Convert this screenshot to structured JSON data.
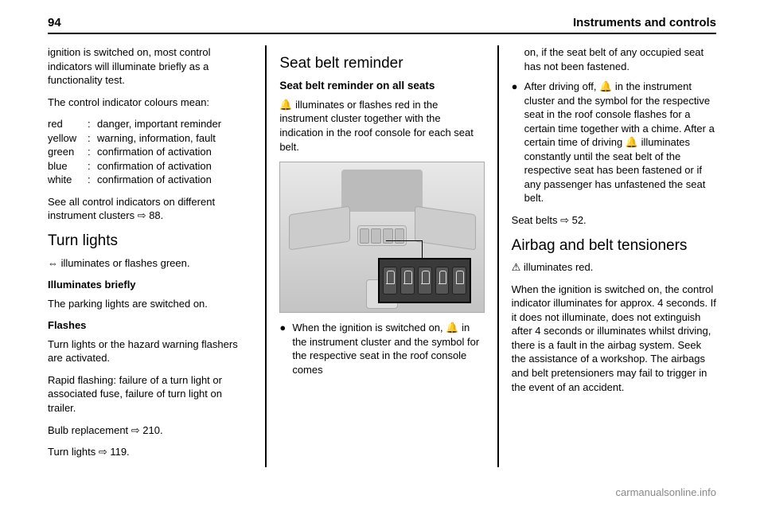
{
  "header": {
    "page_number": "94",
    "section_title": "Instruments and controls"
  },
  "col1": {
    "intro1": "ignition is switched on, most control indicators will illuminate briefly as a functionality test.",
    "intro2": "The control indicator colours mean:",
    "colors": [
      {
        "key": "red",
        "sep": ":",
        "val": "danger, important reminder"
      },
      {
        "key": "yellow",
        "sep": ":",
        "val": "warning, information, fault"
      },
      {
        "key": "green",
        "sep": ":",
        "val": "confirmation of activation"
      },
      {
        "key": "blue",
        "sep": ":",
        "val": "confirmation of activation"
      },
      {
        "key": "white",
        "sep": ":",
        "val": "confirmation of activation"
      }
    ],
    "see_all": "See all control indicators on different instrument clusters ⇨ 88.",
    "turn_lights_title": "Turn lights",
    "turn_lights_line": "⇔ illuminates or flashes green.",
    "illum_title": "Illuminates briefly",
    "illum_text": "The parking lights are switched on.",
    "flashes_title": "Flashes",
    "flashes_text1": "Turn lights or the hazard warning flashers are activated.",
    "flashes_text2": "Rapid flashing: failure of a turn light or associated fuse, failure of turn light on trailer.",
    "bulb": "Bulb replacement ⇨ 210.",
    "turn_ref": "Turn lights ⇨ 119."
  },
  "col2": {
    "title": "Seat belt reminder",
    "subtitle": "Seat belt reminder on all seats",
    "para1": "🔔 illuminates or flashes red in the instrument cluster together with the indication in the roof console for each seat belt.",
    "bullet1": "When the ignition is switched on, 🔔 in the instrument cluster and the symbol for the respective seat in the roof console comes"
  },
  "col3": {
    "cont1": "on, if the seat belt of any occupied seat has not been fastened.",
    "bullet2": "After driving off, 🔔 in the instrument cluster and the symbol for the respective seat in the roof console flashes for a certain time together with a chime. After a certain time of driving 🔔 illuminates constantly until the seat belt of the respective seat has been fastened or if any passenger has unfastened the seat belt.",
    "seatbelts_ref": "Seat belts ⇨ 52.",
    "airbag_title": "Airbag and belt tensioners",
    "airbag_line": "⚠ illuminates red.",
    "airbag_para": "When the ignition is switched on, the control indicator illuminates for approx. 4 seconds. If it does not illuminate, does not extinguish after 4 seconds or illuminates whilst driving, there is a fault in the airbag system. Seek the assistance of a workshop. The airbags and belt pretensioners may fail to trigger in the event of an accident."
  },
  "footer": "carmanualsonline.info"
}
